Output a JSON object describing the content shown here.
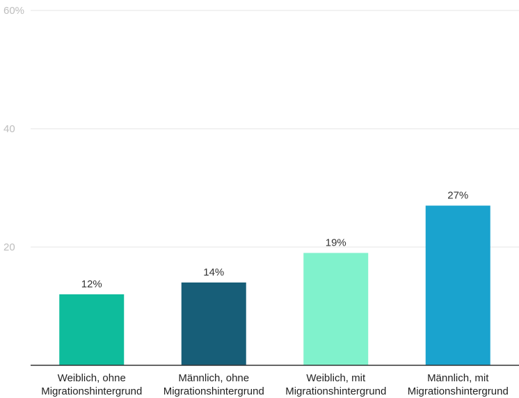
{
  "chart_data": {
    "type": "bar",
    "title": "",
    "xlabel": "",
    "ylabel": "",
    "ylim": [
      0,
      60
    ],
    "y_ticks": [
      {
        "value": 20,
        "label": "20"
      },
      {
        "value": 40,
        "label": "40"
      },
      {
        "value": 60,
        "label": "60%"
      }
    ],
    "grid": true,
    "legend": "none",
    "categories": [
      [
        "Weiblich, ohne",
        "Migrationshintergrund"
      ],
      [
        "Männlich, ohne",
        "Migrationshintergrund"
      ],
      [
        "Weiblich, mit",
        "Migrationshintergrund"
      ],
      [
        "Männlich, mit",
        "Migrationshintergrund"
      ]
    ],
    "values": [
      12,
      14,
      19,
      27
    ],
    "value_labels": [
      "12%",
      "14%",
      "19%",
      "27%"
    ],
    "colors": [
      "#0ebc9c",
      "#175e78",
      "#80f2cc",
      "#1aa3ce"
    ]
  }
}
